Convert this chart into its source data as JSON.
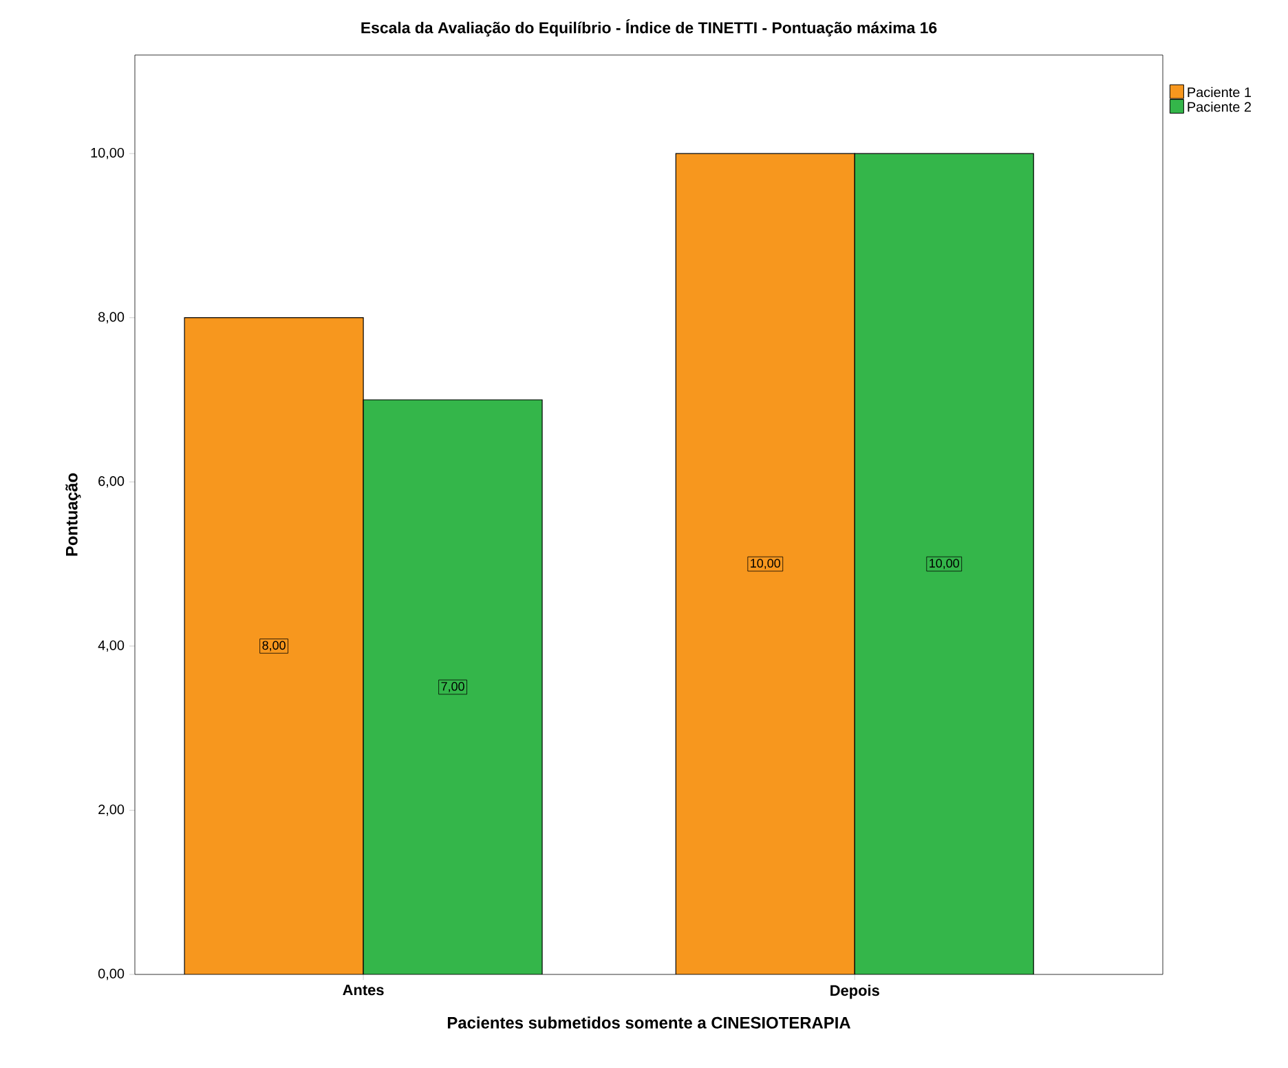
{
  "chart_data": {
    "type": "bar",
    "title": "Escala da Avaliação do Equilíbrio - Índice de TINETTI - Pontuação máxima 16",
    "xlabel": "Pacientes submetidos somente a CINESIOTERAPIA",
    "ylabel": "Pontuação",
    "categories": [
      "Antes",
      "Depois"
    ],
    "series": [
      {
        "name": "Paciente 1",
        "color": "#f7971e",
        "values": [
          8,
          10
        ],
        "value_labels": [
          "8,00",
          "10,00"
        ]
      },
      {
        "name": "Paciente 2",
        "color": "#34b64a",
        "values": [
          7,
          10
        ],
        "value_labels": [
          "7,00",
          "10,00"
        ]
      }
    ],
    "ylim": [
      0,
      11.2
    ],
    "yticks": [
      {
        "value": 0,
        "label": "0,00"
      },
      {
        "value": 2,
        "label": "2,00"
      },
      {
        "value": 4,
        "label": "4,00"
      },
      {
        "value": 6,
        "label": "6,00"
      },
      {
        "value": 8,
        "label": "8,00"
      },
      {
        "value": 10,
        "label": "10,00"
      }
    ],
    "legend": "top right",
    "grid": false
  }
}
